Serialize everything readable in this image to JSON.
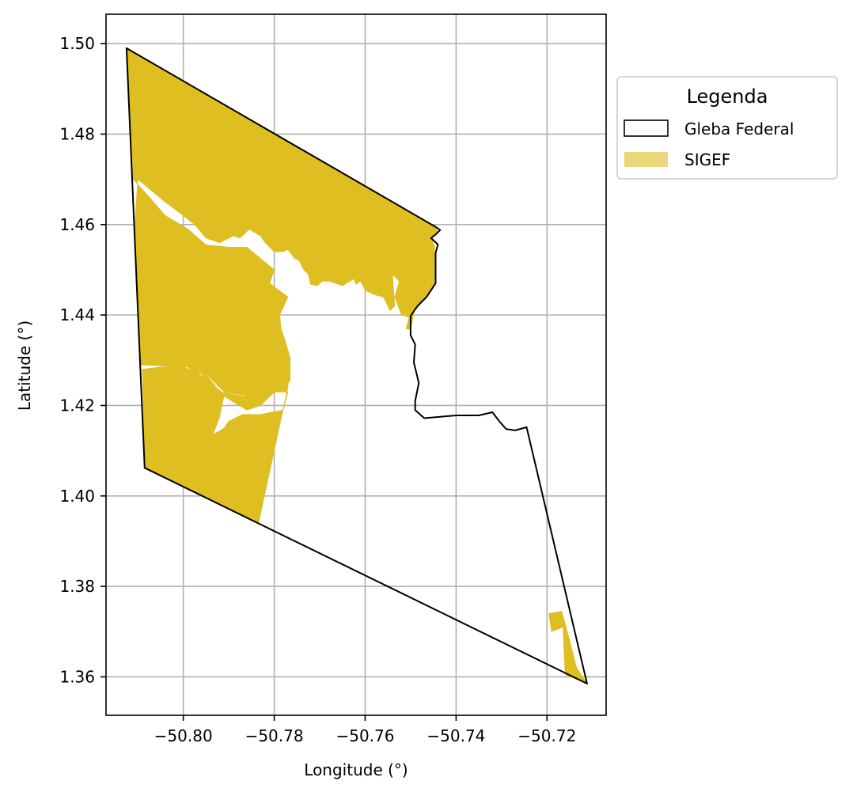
{
  "chart_data": {
    "type": "map",
    "xlabel": "Longitude (°)",
    "ylabel": "Latitude (°)",
    "xlim": [
      -50.817,
      -50.707
    ],
    "ylim": [
      1.3515,
      1.5065
    ],
    "grid": true,
    "x_ticks": [
      -50.8,
      -50.78,
      -50.76,
      -50.74,
      -50.72
    ],
    "x_tick_labels": [
      "−50.80",
      "−50.78",
      "−50.76",
      "−50.74",
      "−50.72"
    ],
    "y_ticks": [
      1.36,
      1.38,
      1.4,
      1.42,
      1.44,
      1.46,
      1.48,
      1.5
    ],
    "y_tick_labels": [
      "1.36",
      "1.38",
      "1.40",
      "1.42",
      "1.44",
      "1.46",
      "1.48",
      "1.50"
    ],
    "legend": {
      "title": "Legenda",
      "placement": "outside-upper-right",
      "entries": [
        {
          "label": "Gleba Federal",
          "style": "outline",
          "edge_color": "#000000",
          "fill": "none"
        },
        {
          "label": "SIGEF",
          "style": "fill",
          "fill": "#ebd67a"
        }
      ]
    },
    "colors": {
      "sigef": "#dfbe21",
      "sigef_legend": "#ebd67a",
      "gleba_edge": "#000000",
      "grid": "#b0b0b0"
    },
    "gleba_federal": [
      [
        -50.8125,
        1.499
      ],
      [
        -50.7445,
        1.4595
      ],
      [
        -50.7435,
        1.4588
      ],
      [
        -50.7445,
        1.4578
      ],
      [
        -50.7455,
        1.457
      ],
      [
        -50.744,
        1.4556
      ],
      [
        -50.7445,
        1.4537
      ],
      [
        -50.7445,
        1.447
      ],
      [
        -50.7465,
        1.444
      ],
      [
        -50.7485,
        1.442
      ],
      [
        -50.75,
        1.4398
      ],
      [
        -50.75,
        1.4355
      ],
      [
        -50.749,
        1.4335
      ],
      [
        -50.7493,
        1.4295
      ],
      [
        -50.7482,
        1.425
      ],
      [
        -50.749,
        1.421
      ],
      [
        -50.749,
        1.419
      ],
      [
        -50.747,
        1.4172
      ],
      [
        -50.74,
        1.4178
      ],
      [
        -50.735,
        1.4178
      ],
      [
        -50.732,
        1.4185
      ],
      [
        -50.7305,
        1.4165
      ],
      [
        -50.729,
        1.4148
      ],
      [
        -50.727,
        1.4145
      ],
      [
        -50.7245,
        1.4152
      ],
      [
        -50.7112,
        1.3585
      ],
      [
        -50.8085,
        1.4062
      ]
    ],
    "sigef_parcels": [
      [
        [
          -50.8123,
          1.4988
        ],
        [
          -50.7445,
          1.4595
        ],
        [
          -50.744,
          1.4583
        ],
        [
          -50.7455,
          1.4572
        ],
        [
          -50.7447,
          1.455
        ],
        [
          -50.7448,
          1.447
        ],
        [
          -50.7465,
          1.444
        ],
        [
          -50.7492,
          1.4408
        ],
        [
          -50.75,
          1.4368
        ],
        [
          -50.751,
          1.437
        ],
        [
          -50.7503,
          1.4395
        ],
        [
          -50.752,
          1.44
        ],
        [
          -50.7535,
          1.444
        ],
        [
          -50.7525,
          1.4475
        ],
        [
          -50.754,
          1.449
        ],
        [
          -50.7535,
          1.442
        ],
        [
          -50.7545,
          1.441
        ],
        [
          -50.756,
          1.444
        ],
        [
          -50.758,
          1.4445
        ],
        [
          -50.76,
          1.4455
        ],
        [
          -50.761,
          1.4475
        ],
        [
          -50.762,
          1.4468
        ],
        [
          -50.7625,
          1.448
        ],
        [
          -50.765,
          1.4465
        ],
        [
          -50.768,
          1.4475
        ],
        [
          -50.7695,
          1.4475
        ],
        [
          -50.7705,
          1.4465
        ],
        [
          -50.772,
          1.4468
        ],
        [
          -50.7725,
          1.449
        ],
        [
          -50.7735,
          1.45
        ],
        [
          -50.7745,
          1.452
        ],
        [
          -50.7755,
          1.4525
        ],
        [
          -50.777,
          1.4545
        ],
        [
          -50.778,
          1.454
        ],
        [
          -50.78,
          1.454
        ],
        [
          -50.782,
          1.456
        ],
        [
          -50.783,
          1.4575
        ],
        [
          -50.7855,
          1.459
        ],
        [
          -50.7875,
          1.457
        ],
        [
          -50.789,
          1.4575
        ],
        [
          -50.792,
          1.456
        ],
        [
          -50.795,
          1.457
        ],
        [
          -50.7975,
          1.46
        ],
        [
          -50.8,
          1.462
        ],
        [
          -50.804,
          1.465
        ],
        [
          -50.81,
          1.47
        ],
        [
          -50.8108,
          1.458
        ],
        [
          -50.81,
          1.44
        ],
        [
          -50.8095,
          1.429
        ],
        [
          -50.8,
          1.4295
        ],
        [
          -50.796,
          1.428
        ],
        [
          -50.791,
          1.423
        ],
        [
          -50.782,
          1.4215
        ],
        [
          -50.779,
          1.4235
        ],
        [
          -50.7765,
          1.4255
        ],
        [
          -50.7765,
          1.4305
        ],
        [
          -50.7775,
          1.434
        ],
        [
          -50.7785,
          1.437
        ],
        [
          -50.7788,
          1.44
        ],
        [
          -50.777,
          1.444
        ],
        [
          -50.781,
          1.447
        ],
        [
          -50.78,
          1.45
        ],
        [
          -50.783,
          1.4525
        ],
        [
          -50.786,
          1.455
        ],
        [
          -50.79,
          1.455
        ],
        [
          -50.795,
          1.4555
        ],
        [
          -50.799,
          1.459
        ],
        [
          -50.804,
          1.462
        ],
        [
          -50.807,
          1.4655
        ],
        [
          -50.811,
          1.47
        ]
      ],
      [
        [
          -50.8097,
          1.429
        ],
        [
          -50.8,
          1.4295
        ],
        [
          -50.796,
          1.428
        ],
        [
          -50.791,
          1.422
        ],
        [
          -50.786,
          1.419
        ],
        [
          -50.783,
          1.42
        ],
        [
          -50.78,
          1.423
        ],
        [
          -50.777,
          1.423
        ],
        [
          -50.778,
          1.419
        ],
        [
          -50.783,
          1.418
        ],
        [
          -50.787,
          1.418
        ],
        [
          -50.79,
          1.4165
        ],
        [
          -50.791,
          1.415
        ],
        [
          -50.7935,
          1.4135
        ],
        [
          -50.792,
          1.4175
        ],
        [
          -50.791,
          1.4225
        ],
        [
          -50.795,
          1.426
        ],
        [
          -50.799,
          1.4285
        ],
        [
          -50.805,
          1.4285
        ],
        [
          -50.809,
          1.428
        ],
        [
          -50.8085,
          1.4062
        ],
        [
          -50.7835,
          1.3938
        ],
        [
          -50.777,
          1.424
        ],
        [
          -50.7768,
          1.4265
        ],
        [
          -50.7805,
          1.4235
        ],
        [
          -50.7865,
          1.422
        ],
        [
          -50.792,
          1.423
        ],
        [
          -50.796,
          1.427
        ],
        [
          -50.8,
          1.4285
        ]
      ],
      [
        [
          -50.7196,
          1.374
        ],
        [
          -50.7168,
          1.3745
        ],
        [
          -50.7158,
          1.371
        ],
        [
          -50.7135,
          1.362
        ],
        [
          -50.7112,
          1.3585
        ],
        [
          -50.716,
          1.3605
        ],
        [
          -50.7165,
          1.371
        ],
        [
          -50.719,
          1.37
        ]
      ]
    ]
  }
}
